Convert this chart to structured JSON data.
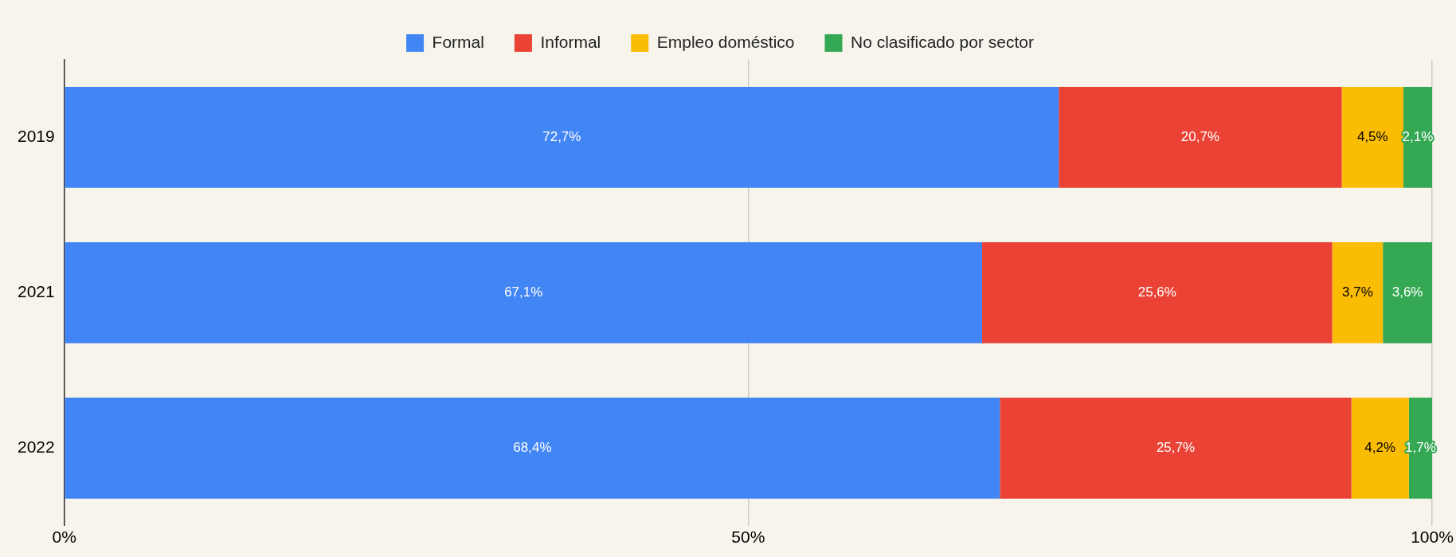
{
  "chart_data": {
    "type": "bar",
    "orientation": "horizontal",
    "stacked": true,
    "categories": [
      "2019",
      "2021",
      "2022"
    ],
    "series": [
      {
        "name": "Formal",
        "color": "#4285f4",
        "values": [
          72.7,
          67.1,
          68.4
        ],
        "value_labels": [
          "72,7%",
          "67,1%",
          "68,4%"
        ]
      },
      {
        "name": "Informal",
        "color": "#ea4335",
        "values": [
          20.7,
          25.6,
          25.7
        ],
        "value_labels": [
          "20,7%",
          "25,6%",
          "25,7%"
        ]
      },
      {
        "name": "Empleo doméstico",
        "color": "#fbbc04",
        "values": [
          4.5,
          3.7,
          4.2
        ],
        "value_labels": [
          "4,5%",
          "3,7%",
          "4,2%"
        ]
      },
      {
        "name": "No clasificado por sector",
        "color": "#34a853",
        "values": [
          2.1,
          3.6,
          1.7
        ],
        "value_labels": [
          "2,1%",
          "3,6%",
          "1,7%"
        ]
      }
    ],
    "xlim": [
      0,
      100
    ],
    "xticks": [
      {
        "value": 0,
        "label": "0%"
      },
      {
        "value": 50,
        "label": "50%"
      },
      {
        "value": 100,
        "label": "100%"
      }
    ],
    "grid": "x",
    "legend": "top"
  }
}
